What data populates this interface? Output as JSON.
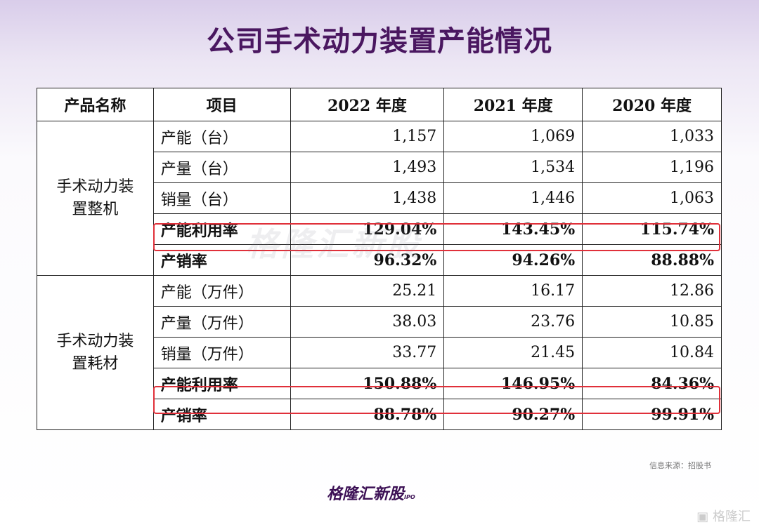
{
  "title": "公司手术动力装置产能情况",
  "headers": [
    "产品名称",
    "项目",
    "2022 年度",
    "2021 年度",
    "2020 年度"
  ],
  "groups": [
    {
      "product": "手术动力装置整机",
      "rows": [
        {
          "label": "产能（台）",
          "values": [
            "1,157",
            "1,069",
            "1,033"
          ]
        },
        {
          "label": "产量（台）",
          "values": [
            "1,493",
            "1,534",
            "1,196"
          ]
        },
        {
          "label": "销量（台）",
          "values": [
            "1,438",
            "1,446",
            "1,063"
          ]
        },
        {
          "label": "产能利用率",
          "values": [
            "129.04%",
            "143.45%",
            "115.74%"
          ]
        },
        {
          "label": "产销率",
          "values": [
            "96.32%",
            "94.26%",
            "88.88%"
          ]
        }
      ]
    },
    {
      "product": "手术动力装置耗材",
      "rows": [
        {
          "label": "产能（万件）",
          "values": [
            "25.21",
            "16.17",
            "12.86"
          ]
        },
        {
          "label": "产量（万件）",
          "values": [
            "38.03",
            "23.76",
            "10.85"
          ]
        },
        {
          "label": "销量（万件）",
          "values": [
            "33.77",
            "21.45",
            "10.84"
          ]
        },
        {
          "label": "产能利用率",
          "values": [
            "150.88%",
            "146.95%",
            "84.36%"
          ]
        },
        {
          "label": "产销率",
          "values": [
            "88.78%",
            "90.27%",
            "99.91%"
          ]
        }
      ]
    }
  ],
  "source": "信息来源：招股书",
  "brand": "格隆汇新股",
  "brand_sub": "IPO",
  "watermark": "格隆汇新股",
  "corner_logo": "格隆汇",
  "highlight_color": "#e0303a"
}
